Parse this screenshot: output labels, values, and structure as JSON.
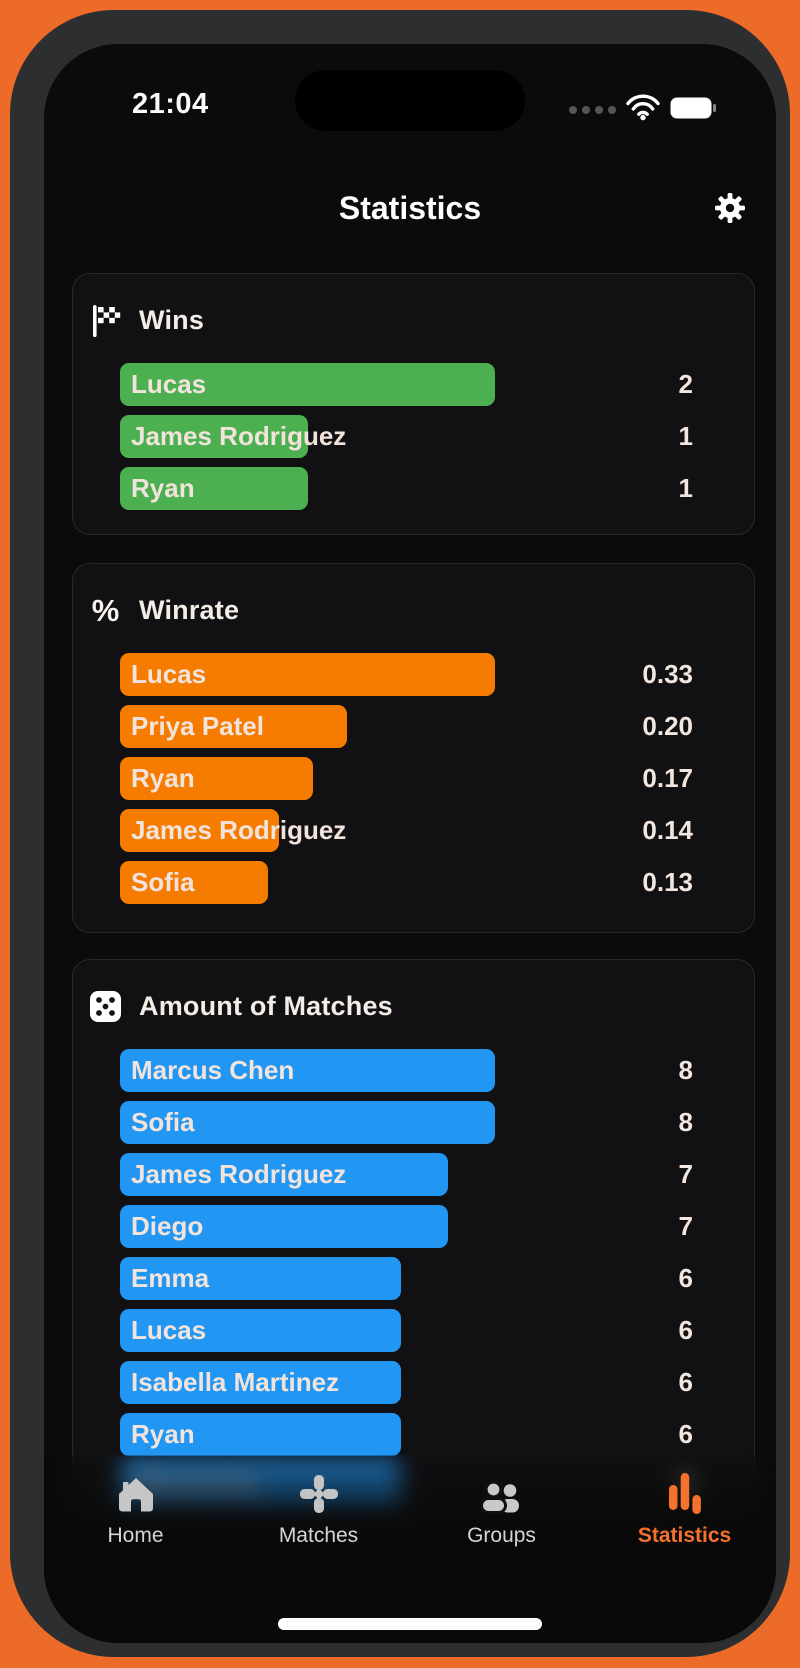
{
  "status_bar": {
    "time": "21:04"
  },
  "header": {
    "title": "Statistics"
  },
  "colors": {
    "accent_orange": "#f4722b",
    "wins_bar": "#4caf50",
    "winrate_bar": "#f57c00",
    "matches_bar": "#2196f3",
    "phone_surround": "#ec6b28"
  },
  "cards": [
    {
      "id": "wins",
      "icon": "checkered-flag-icon",
      "title": "Wins",
      "bar_color": "#4caf50",
      "rows": [
        {
          "name": "Lucas",
          "value": 2,
          "label": "2"
        },
        {
          "name": "James Rodriguez",
          "value": 1,
          "label": "1"
        },
        {
          "name": "Ryan",
          "value": 1,
          "label": "1"
        }
      ]
    },
    {
      "id": "winrate",
      "icon": "percent-icon",
      "title": "Winrate",
      "bar_color": "#f57c00",
      "rows": [
        {
          "name": "Lucas",
          "value": 0.33,
          "label": "0.33"
        },
        {
          "name": "Priya Patel",
          "value": 0.2,
          "label": "0.20"
        },
        {
          "name": "Ryan",
          "value": 0.17,
          "label": "0.17"
        },
        {
          "name": "James Rodriguez",
          "value": 0.14,
          "label": "0.14"
        },
        {
          "name": "Sofia",
          "value": 0.13,
          "label": "0.13"
        }
      ]
    },
    {
      "id": "matches",
      "icon": "dice-icon",
      "title": "Amount of Matches",
      "bar_color": "#2196f3",
      "rows": [
        {
          "name": "Marcus Chen",
          "value": 8,
          "label": "8"
        },
        {
          "name": "Sofia",
          "value": 8,
          "label": "8"
        },
        {
          "name": "James Rodriguez",
          "value": 7,
          "label": "7"
        },
        {
          "name": "Diego",
          "value": 7,
          "label": "7"
        },
        {
          "name": "Emma",
          "value": 6,
          "label": "6"
        },
        {
          "name": "Lucas",
          "value": 6,
          "label": "6"
        },
        {
          "name": "Isabella Martinez",
          "value": 6,
          "label": "6"
        },
        {
          "name": "Ryan",
          "value": 6,
          "label": "6"
        },
        {
          "name": "Olivia Kim",
          "value": 6,
          "label": "6",
          "blurred": true
        }
      ]
    }
  ],
  "tab_bar": {
    "items": [
      {
        "label": "Home",
        "icon": "home-icon",
        "active": false
      },
      {
        "label": "Matches",
        "icon": "dpad-icon",
        "active": false
      },
      {
        "label": "Groups",
        "icon": "groups-icon",
        "active": false
      },
      {
        "label": "Statistics",
        "icon": "stats-bars-icon",
        "active": true
      }
    ]
  }
}
